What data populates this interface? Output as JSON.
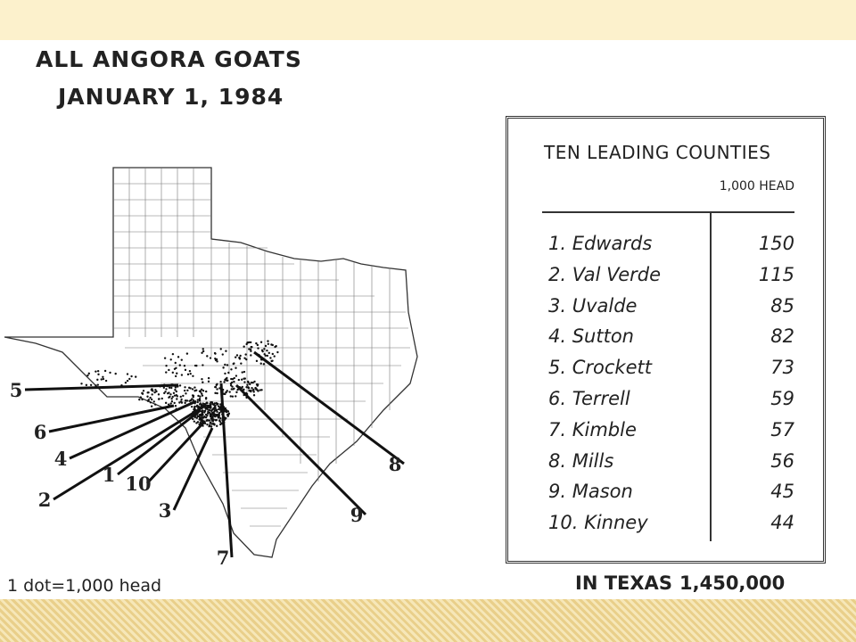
{
  "title": [
    "ALL ANGORA GOATS",
    "JANUARY 1, 1984"
  ],
  "table": {
    "title": "TEN LEADING COUNTIES",
    "unit": "1,000 HEAD",
    "rows": [
      [
        "1. Edwards",
        150
      ],
      [
        "2. Val Verde",
        115
      ],
      [
        "3. Uvalde",
        85
      ],
      [
        "4. Sutton",
        82
      ],
      [
        "5. Crockett",
        73
      ],
      [
        "6. Terrell",
        59
      ],
      [
        "7. Kimble",
        57
      ],
      [
        "8. Mills",
        56
      ],
      [
        "9. Mason",
        45
      ],
      [
        "10. Kinney",
        44
      ]
    ]
  },
  "total": {
    "label": "IN TEXAS",
    "value": "1,450,000"
  },
  "legend": "1 dot=1,000 head",
  "map": {
    "labels": [
      "5",
      "6",
      "4",
      "2",
      "1",
      "10",
      "3",
      "7",
      "9",
      "8"
    ]
  }
}
